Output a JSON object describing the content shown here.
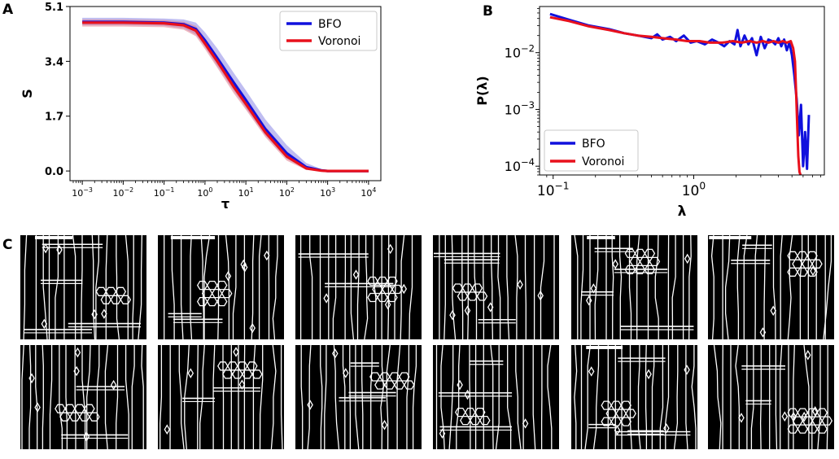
{
  "panels": {
    "a": "A",
    "b": "B",
    "c": "C"
  },
  "chart_data": [
    {
      "id": "A",
      "type": "line",
      "xscale": "log",
      "xlabel": "τ",
      "ylabel": "S",
      "xlim": [
        0.0005,
        20000
      ],
      "ylim": [
        -0.3,
        5.1
      ],
      "xticks": [
        {
          "v": 0.001,
          "b": "10",
          "e": "−3"
        },
        {
          "v": 0.01,
          "b": "10",
          "e": "−2"
        },
        {
          "v": 0.1,
          "b": "10",
          "e": "−1"
        },
        {
          "v": 1,
          "b": "10",
          "e": "0"
        },
        {
          "v": 10,
          "b": "10",
          "e": "1"
        },
        {
          "v": 100,
          "b": "10",
          "e": "2"
        },
        {
          "v": 1000,
          "b": "10",
          "e": "3"
        },
        {
          "v": 10000,
          "b": "10",
          "e": "4"
        }
      ],
      "yticks": [
        {
          "v": 0.0,
          "label": "0.0"
        },
        {
          "v": 1.7,
          "label": "1.7"
        },
        {
          "v": 3.4,
          "label": "3.4"
        },
        {
          "v": 5.1,
          "label": "5.1"
        }
      ],
      "legend": {
        "position": "upper right"
      },
      "series": [
        {
          "name": "BFO",
          "color": "#1010dd",
          "band_color": "#8a86e6",
          "x": [
            0.001,
            0.01,
            0.1,
            0.3,
            0.6,
            1,
            2,
            5,
            10,
            30,
            100,
            300,
            700,
            1000,
            3000,
            10000
          ],
          "y": [
            4.62,
            4.62,
            4.6,
            4.55,
            4.4,
            4.05,
            3.5,
            2.75,
            2.2,
            1.3,
            0.55,
            0.12,
            0.02,
            0.0,
            0.0,
            0.0
          ],
          "band_lo": [
            4.52,
            4.52,
            4.5,
            4.42,
            4.23,
            3.85,
            3.25,
            2.5,
            1.95,
            1.1,
            0.38,
            0.05,
            0.0,
            0.0,
            0.0,
            0.0
          ],
          "band_hi": [
            4.75,
            4.75,
            4.73,
            4.7,
            4.6,
            4.3,
            3.8,
            3.05,
            2.5,
            1.6,
            0.8,
            0.25,
            0.06,
            0.01,
            0.0,
            0.0
          ]
        },
        {
          "name": "Voronoi",
          "color": "#e8101c",
          "band_color": "#e27f8e",
          "x": [
            0.001,
            0.01,
            0.1,
            0.3,
            0.6,
            1,
            2,
            5,
            10,
            30,
            100,
            300,
            700,
            1000,
            3000,
            10000
          ],
          "y": [
            4.6,
            4.6,
            4.58,
            4.52,
            4.35,
            3.95,
            3.4,
            2.62,
            2.08,
            1.2,
            0.45,
            0.08,
            0.01,
            0.0,
            0.0,
            0.0
          ],
          "band_lo": [
            4.48,
            4.48,
            4.46,
            4.38,
            4.18,
            3.78,
            3.2,
            2.42,
            1.9,
            1.05,
            0.32,
            0.03,
            0.0,
            0.0,
            0.0,
            0.0
          ],
          "band_hi": [
            4.7,
            4.7,
            4.68,
            4.63,
            4.5,
            4.12,
            3.58,
            2.82,
            2.27,
            1.38,
            0.6,
            0.15,
            0.03,
            0.0,
            0.0,
            0.0
          ]
        }
      ]
    },
    {
      "id": "B",
      "type": "line",
      "xscale": "log",
      "yscale": "log",
      "xlabel": "λ",
      "ylabel": "P(λ)",
      "xlim": [
        0.08,
        8.5
      ],
      "ylim": [
        7e-05,
        0.065
      ],
      "xticks": [
        {
          "v": 0.1,
          "b": "10",
          "e": "−1"
        },
        {
          "v": 1,
          "b": "10",
          "e": "0"
        }
      ],
      "yticks": [
        {
          "v": 0.0001,
          "b": "10",
          "e": "−4"
        },
        {
          "v": 0.001,
          "b": "10",
          "e": "−3"
        },
        {
          "v": 0.01,
          "b": "10",
          "e": "−2"
        }
      ],
      "legend": {
        "position": "lower left"
      },
      "series": [
        {
          "name": "BFO",
          "color": "#1010dd",
          "x": [
            0.095,
            0.13,
            0.18,
            0.25,
            0.32,
            0.4,
            0.5,
            0.55,
            0.6,
            0.68,
            0.75,
            0.85,
            0.95,
            1.05,
            1.2,
            1.35,
            1.5,
            1.65,
            1.8,
            1.95,
            2.05,
            2.15,
            2.3,
            2.45,
            2.6,
            2.8,
            3.0,
            3.2,
            3.4,
            3.6,
            3.8,
            4.0,
            4.2,
            4.4,
            4.6,
            4.8,
            5.0,
            5.2,
            5.4,
            5.6,
            5.8,
            6.0,
            6.2,
            6.4,
            6.6
          ],
          "y": [
            0.048,
            0.038,
            0.03,
            0.026,
            0.022,
            0.02,
            0.018,
            0.021,
            0.017,
            0.019,
            0.016,
            0.02,
            0.015,
            0.016,
            0.014,
            0.017,
            0.015,
            0.013,
            0.016,
            0.014,
            0.025,
            0.013,
            0.02,
            0.014,
            0.018,
            0.009,
            0.019,
            0.012,
            0.017,
            0.016,
            0.014,
            0.018,
            0.013,
            0.017,
            0.011,
            0.015,
            0.009,
            0.004,
            0.0015,
            0.00035,
            0.0012,
            0.0001,
            0.0004,
            9e-05,
            0.0008
          ]
        },
        {
          "name": "Voronoi",
          "color": "#e8101c",
          "x": [
            0.095,
            0.13,
            0.18,
            0.25,
            0.32,
            0.4,
            0.5,
            0.6,
            0.75,
            0.9,
            1.1,
            1.3,
            1.6,
            1.9,
            2.2,
            2.5,
            2.8,
            3.1,
            3.4,
            3.7,
            4.0,
            4.3,
            4.6,
            4.9,
            5.1,
            5.25,
            5.35,
            5.45,
            5.55,
            5.65,
            5.75
          ],
          "y": [
            0.042,
            0.036,
            0.029,
            0.025,
            0.022,
            0.02,
            0.019,
            0.018,
            0.017,
            0.016,
            0.016,
            0.015,
            0.015,
            0.016,
            0.015,
            0.016,
            0.015,
            0.016,
            0.015,
            0.016,
            0.015,
            0.016,
            0.015,
            0.016,
            0.012,
            0.007,
            0.002,
            0.0005,
            0.00015,
            8e-05,
            7e-05
          ]
        }
      ]
    }
  ],
  "microstructures": {
    "rows": 2,
    "cols": 6,
    "tiles": [
      {
        "seed": 11
      },
      {
        "seed": 23
      },
      {
        "seed": 37
      },
      {
        "seed": 41
      },
      {
        "seed": 53
      },
      {
        "seed": 67
      },
      {
        "seed": 71
      },
      {
        "seed": 83
      },
      {
        "seed": 97
      },
      {
        "seed": 101
      },
      {
        "seed": 113
      },
      {
        "seed": 127
      }
    ]
  }
}
